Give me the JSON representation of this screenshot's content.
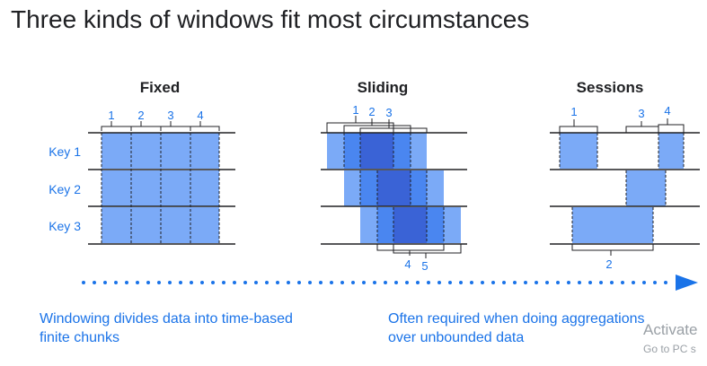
{
  "title": "Three kinds of windows fit most circumstances",
  "panels": {
    "fixed": {
      "label": "Fixed",
      "window_labels": [
        "1",
        "2",
        "3",
        "4"
      ]
    },
    "sliding": {
      "label": "Sliding",
      "window_labels": [
        "1",
        "2",
        "3",
        "4",
        "5"
      ]
    },
    "sessions": {
      "label": "Sessions",
      "window_labels": [
        "1",
        "3",
        "4",
        "2"
      ]
    }
  },
  "keys": [
    "Key 1",
    "Key 2",
    "Key 3"
  ],
  "captions": {
    "left": "Windowing divides data into time-based finite chunks",
    "right": "Often required when doing aggregations over unbounded data"
  },
  "watermark": {
    "line1": "Activate",
    "line2": "Go to PC s"
  },
  "colors": {
    "accent": "#1a73e8",
    "light_fill": "#7baaf7",
    "mid_fill": "#4a86f0",
    "dark_fill": "#3a63d6",
    "title": "#202124"
  }
}
